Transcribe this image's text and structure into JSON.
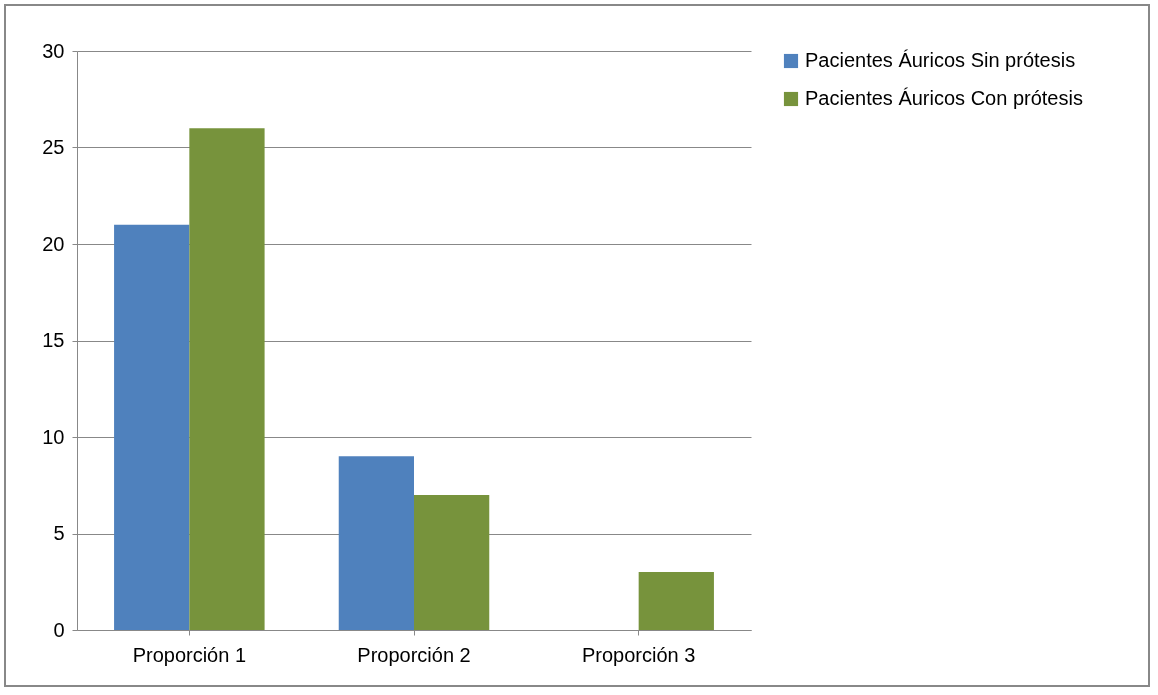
{
  "chart_data": {
    "type": "bar",
    "categories": [
      "Proporción 1",
      "Proporción 2",
      "Proporción 3"
    ],
    "series": [
      {
        "name": "Pacientes Áuricos Sin prótesis",
        "color": "#4f81bd",
        "values": [
          21,
          9,
          0
        ]
      },
      {
        "name": "Pacientes Áuricos Con prótesis",
        "color": "#77933c",
        "values": [
          26,
          7,
          3
        ]
      }
    ],
    "ylim": [
      0,
      30
    ],
    "yticks": [
      0,
      5,
      10,
      15,
      20,
      25,
      30
    ],
    "grid": "y",
    "legend": "right"
  }
}
